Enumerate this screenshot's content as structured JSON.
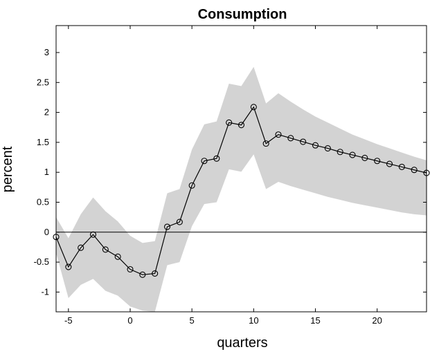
{
  "chart_data": {
    "type": "line",
    "title": "Consumption",
    "xlabel": "quarters",
    "ylabel": "percent",
    "xlim": [
      -6,
      24
    ],
    "ylim": [
      -1.33,
      3.45
    ],
    "x_ticks": [
      -5,
      0,
      5,
      10,
      15,
      20
    ],
    "x_tick_labels": [
      "-5",
      "0",
      "5",
      "10",
      "15",
      "20"
    ],
    "y_ticks": [
      -1,
      -0.5,
      0,
      0.5,
      1,
      1.5,
      2,
      2.5,
      3
    ],
    "y_tick_labels": [
      "-1",
      "-0.5",
      "0",
      "0.5",
      "1",
      "1.5",
      "2",
      "2.5",
      "3"
    ],
    "grid": false,
    "reference_line": 0,
    "colors": {
      "band": "#d3d3d3",
      "line": "#000000"
    },
    "series": [
      {
        "x": [
          -6,
          -5,
          -4,
          -3,
          -2,
          -1,
          0,
          1,
          2,
          3,
          4,
          5,
          6,
          7,
          8,
          9,
          10,
          11,
          12,
          13,
          14,
          15,
          16,
          17,
          18,
          19,
          20,
          21,
          22,
          23,
          24
        ],
        "values": [
          -0.08,
          -0.58,
          -0.26,
          -0.04,
          -0.29,
          -0.41,
          -0.62,
          -0.71,
          -0.69,
          0.09,
          0.17,
          0.78,
          1.19,
          1.23,
          1.83,
          1.79,
          2.09,
          1.48,
          1.63,
          1.57,
          1.51,
          1.45,
          1.4,
          1.34,
          1.29,
          1.24,
          1.19,
          1.14,
          1.09,
          1.04,
          0.99
        ],
        "marker": "circle"
      }
    ],
    "confidence_band": {
      "x": [
        -6,
        -5,
        -4,
        -3,
        -2,
        -1,
        0,
        1,
        2,
        3,
        4,
        5,
        6,
        7,
        8,
        9,
        10,
        11,
        12,
        13,
        14,
        15,
        16,
        17,
        18,
        19,
        20,
        21,
        22,
        23,
        24
      ],
      "upper": [
        0.25,
        -0.1,
        0.3,
        0.58,
        0.35,
        0.18,
        -0.06,
        -0.18,
        -0.15,
        0.65,
        0.72,
        1.38,
        1.8,
        1.85,
        2.48,
        2.44,
        2.76,
        2.15,
        2.32,
        2.18,
        2.05,
        1.93,
        1.83,
        1.73,
        1.63,
        1.55,
        1.47,
        1.4,
        1.33,
        1.26,
        1.2
      ],
      "lower": [
        -0.35,
        -1.1,
        -0.88,
        -0.78,
        -0.98,
        -1.06,
        -1.24,
        -1.31,
        -1.33,
        -0.55,
        -0.5,
        0.1,
        0.47,
        0.5,
        1.05,
        1.01,
        1.3,
        0.72,
        0.84,
        0.77,
        0.71,
        0.65,
        0.59,
        0.54,
        0.49,
        0.45,
        0.41,
        0.37,
        0.33,
        0.3,
        0.28
      ]
    }
  }
}
